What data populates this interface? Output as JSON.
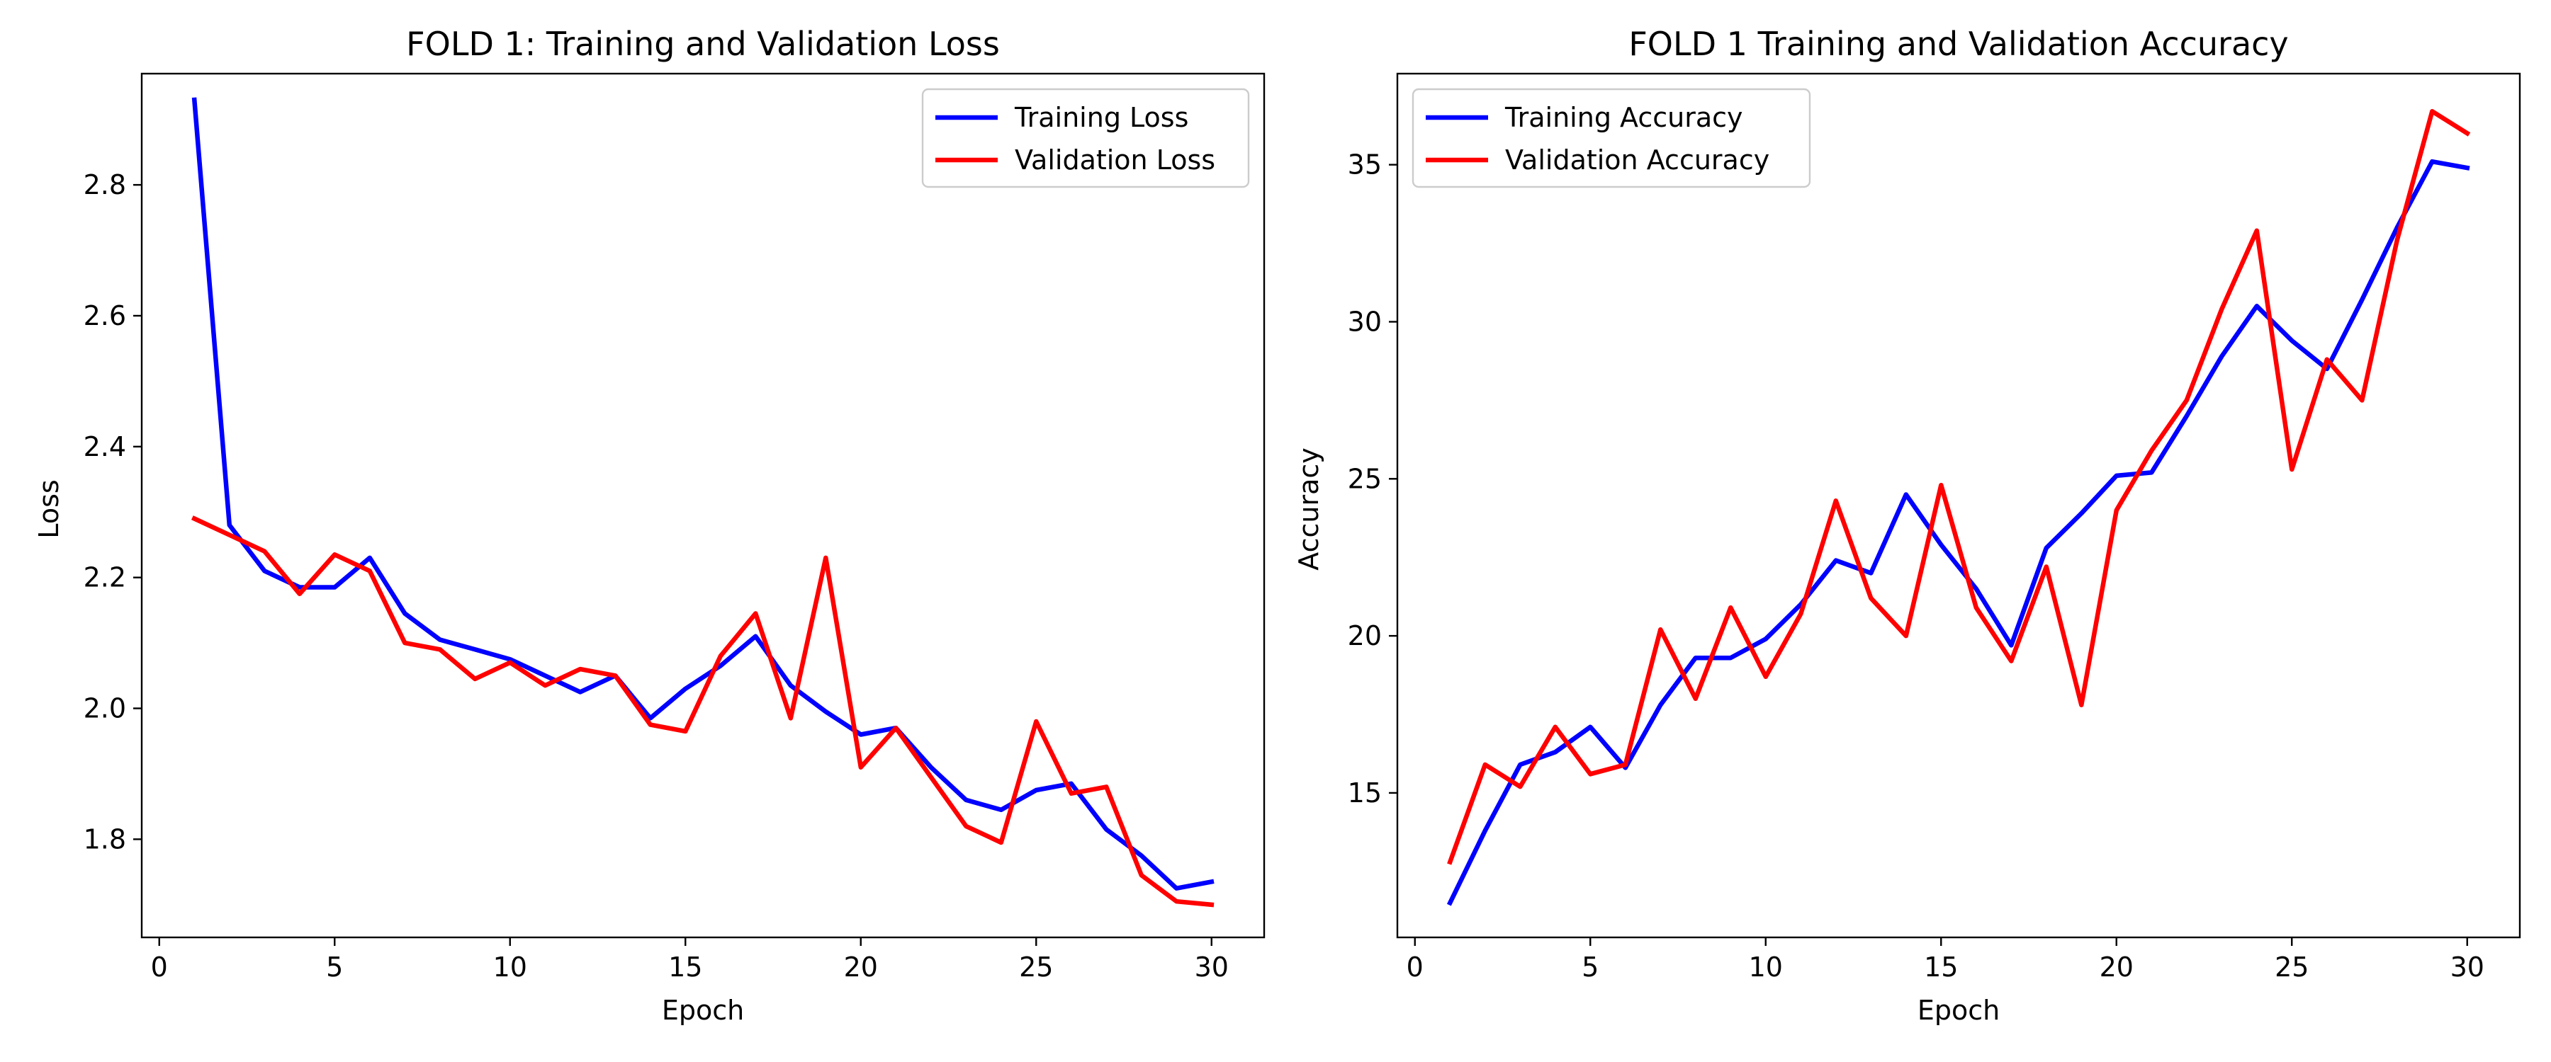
{
  "chart_data": [
    {
      "type": "line",
      "title": "FOLD 1: Training and Validation Loss",
      "xlabel": "Epoch",
      "ylabel": "Loss",
      "xlim": [
        -0.5,
        31.5
      ],
      "ylim": [
        1.65,
        2.97
      ],
      "xticks": [
        0,
        5,
        10,
        15,
        20,
        25,
        30
      ],
      "yticks": [
        1.8,
        2.0,
        2.2,
        2.4,
        2.6,
        2.8
      ],
      "ytick_labels": [
        "1.8",
        "2.0",
        "2.2",
        "2.4",
        "2.6",
        "2.8"
      ],
      "legend_position": "upper right",
      "grid": false,
      "x": [
        1,
        2,
        3,
        4,
        5,
        6,
        7,
        8,
        9,
        10,
        11,
        12,
        13,
        14,
        15,
        16,
        17,
        18,
        19,
        20,
        21,
        22,
        23,
        24,
        25,
        26,
        27,
        28,
        29,
        30
      ],
      "series": [
        {
          "name": "Training Loss",
          "color": "#0000ff",
          "values": [
            2.93,
            2.28,
            2.21,
            2.185,
            2.185,
            2.23,
            2.145,
            2.105,
            2.09,
            2.075,
            2.05,
            2.025,
            2.05,
            1.985,
            2.03,
            2.065,
            2.11,
            2.035,
            1.995,
            1.96,
            1.97,
            1.91,
            1.86,
            1.845,
            1.875,
            1.885,
            1.815,
            1.775,
            1.725,
            1.735
          ]
        },
        {
          "name": "Validation Loss",
          "color": "#ff0000",
          "values": [
            2.29,
            2.265,
            2.24,
            2.175,
            2.235,
            2.21,
            2.1,
            2.09,
            2.045,
            2.07,
            2.035,
            2.06,
            2.05,
            1.975,
            1.965,
            2.08,
            2.145,
            1.985,
            2.23,
            1.91,
            1.97,
            1.895,
            1.82,
            1.795,
            1.98,
            1.87,
            1.88,
            1.745,
            1.705,
            1.7
          ]
        }
      ]
    },
    {
      "type": "line",
      "title": "FOLD 1 Training and Validation Accuracy",
      "xlabel": "Epoch",
      "ylabel": "Accuracy",
      "xlim": [
        -0.5,
        31.5
      ],
      "ylim": [
        10.4,
        37.9
      ],
      "xticks": [
        0,
        5,
        10,
        15,
        20,
        25,
        30
      ],
      "yticks": [
        15,
        20,
        25,
        30,
        35
      ],
      "ytick_labels": [
        "15",
        "20",
        "25",
        "30",
        "35"
      ],
      "legend_position": "upper left",
      "grid": false,
      "x": [
        1,
        2,
        3,
        4,
        5,
        6,
        7,
        8,
        9,
        10,
        11,
        12,
        13,
        14,
        15,
        16,
        17,
        18,
        19,
        20,
        21,
        22,
        23,
        24,
        25,
        26,
        27,
        28,
        29,
        30
      ],
      "series": [
        {
          "name": "Training Accuracy",
          "color": "#0000ff",
          "values": [
            11.5,
            13.8,
            15.9,
            16.3,
            17.1,
            15.8,
            17.8,
            19.3,
            19.3,
            19.9,
            21.0,
            22.4,
            22.0,
            24.5,
            22.9,
            21.5,
            19.7,
            22.8,
            23.9,
            25.1,
            25.2,
            27.0,
            28.9,
            30.5,
            29.4,
            28.5,
            30.7,
            33.0,
            35.1,
            34.9
          ]
        },
        {
          "name": "Validation Accuracy",
          "color": "#ff0000",
          "values": [
            12.8,
            15.9,
            15.2,
            17.1,
            15.6,
            15.9,
            20.2,
            18.0,
            20.9,
            18.7,
            20.7,
            24.3,
            21.2,
            20.0,
            24.8,
            20.9,
            19.2,
            22.2,
            17.8,
            24.0,
            25.9,
            27.5,
            30.4,
            32.9,
            25.3,
            28.8,
            27.5,
            32.6,
            36.7,
            36.0
          ]
        }
      ]
    }
  ]
}
